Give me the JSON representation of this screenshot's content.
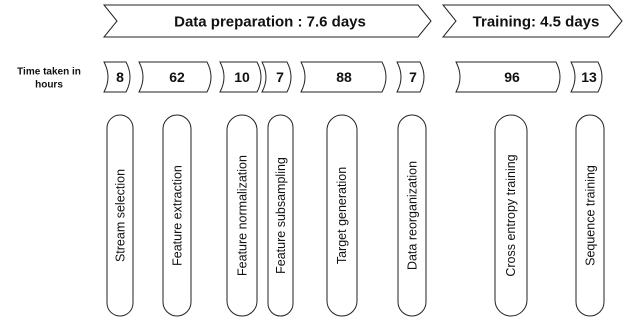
{
  "row_label": {
    "line1": "Time taken in",
    "line2": "hours"
  },
  "phases": {
    "data_preparation": "Data preparation : 7.6 days",
    "training": "Training: 4.5 days"
  },
  "steps": [
    {
      "hours": "8",
      "label": "Stream selection"
    },
    {
      "hours": "62",
      "label": "Feature extraction"
    },
    {
      "hours": "10",
      "label": "Feature normalization"
    },
    {
      "hours": "7",
      "label": "Feature subsampling"
    },
    {
      "hours": "88",
      "label": "Target generation"
    },
    {
      "hours": "7",
      "label": "Data reorganization"
    },
    {
      "hours": "96",
      "label": "Cross entropy training"
    },
    {
      "hours": "13",
      "label": "Sequence training"
    }
  ]
}
